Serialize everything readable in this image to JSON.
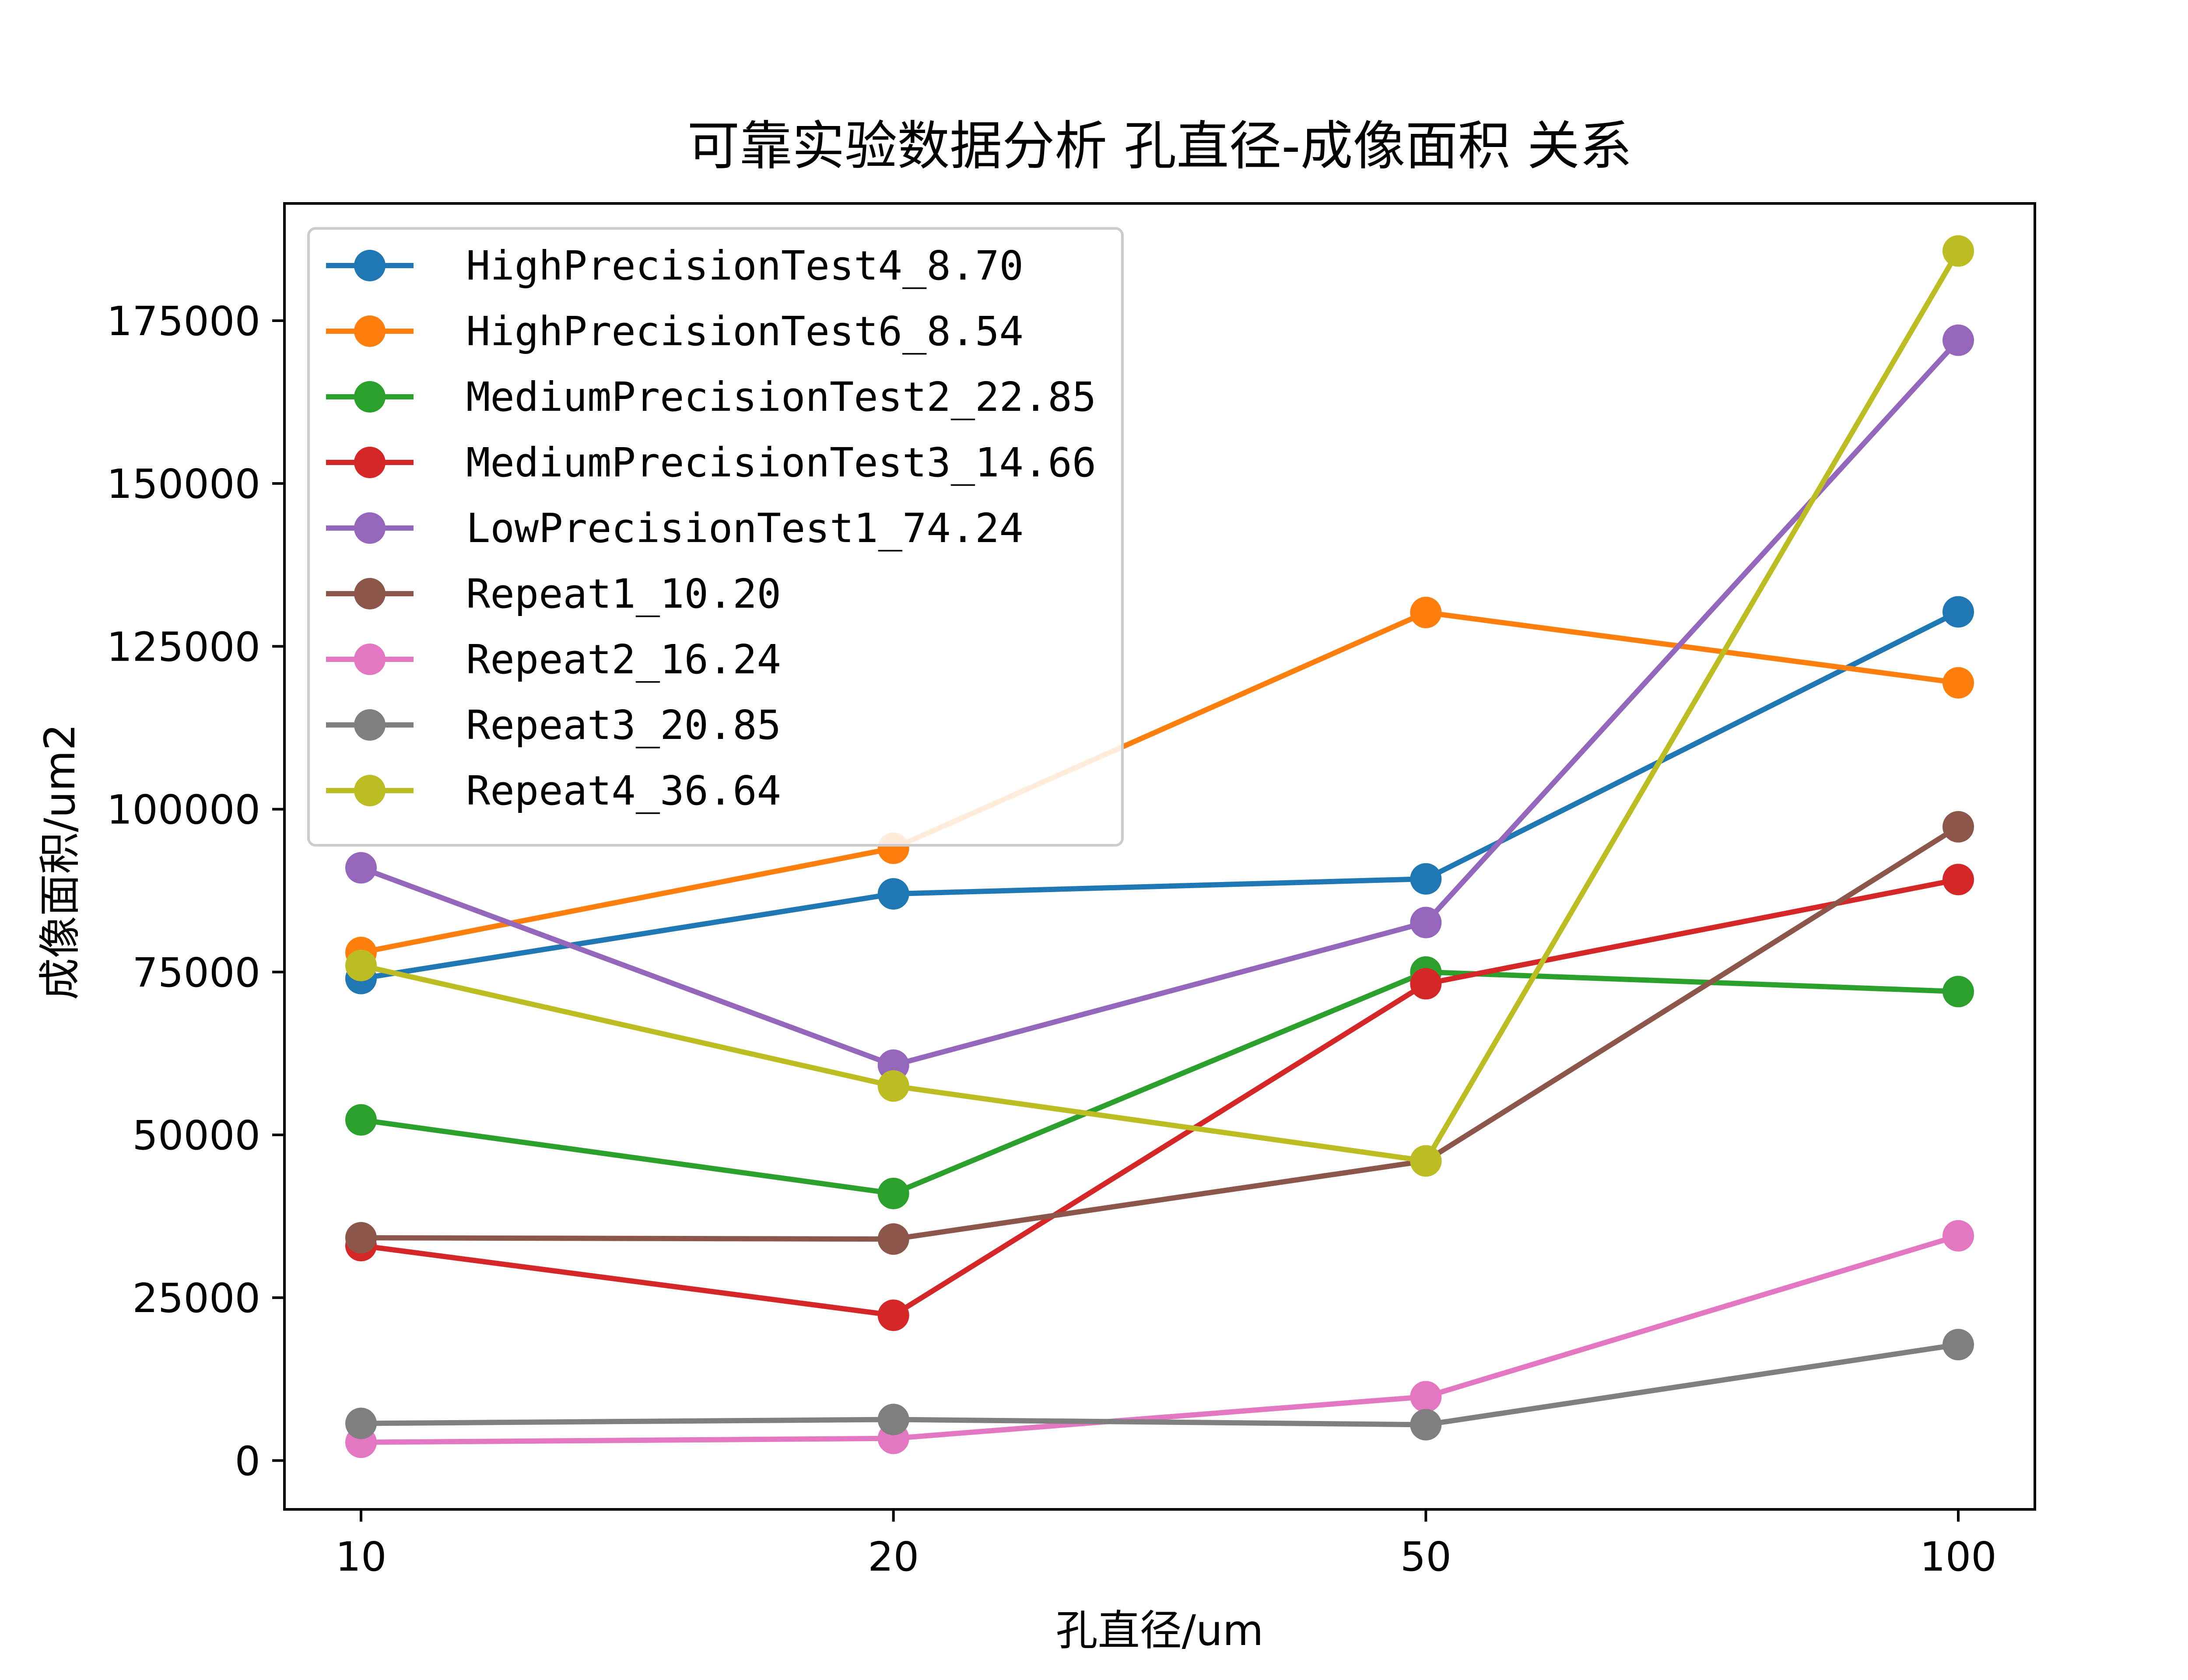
{
  "chart_data": {
    "type": "line",
    "title": "可靠实验数据分析 孔直径-成像面积 关系",
    "xlabel": "孔直径/um",
    "ylabel": "成像面积/um2",
    "categories": [
      "10",
      "20",
      "50",
      "100"
    ],
    "ylim": [
      -7500,
      193000
    ],
    "yticks": [
      0,
      25000,
      50000,
      75000,
      100000,
      125000,
      150000,
      175000
    ],
    "grid": false,
    "legend_position": "top-left",
    "series": [
      {
        "name": "HighPrecisionTest4_8.70",
        "color": "#1f77b4",
        "values": [
          74000,
          87000,
          89300,
          130300
        ]
      },
      {
        "name": "HighPrecisionTest6_8.54",
        "color": "#ff7f0e",
        "values": [
          78000,
          94000,
          130200,
          119400
        ]
      },
      {
        "name": "MediumPrecisionTest2_22.85",
        "color": "#2ca02c",
        "values": [
          52300,
          41000,
          75000,
          72000
        ]
      },
      {
        "name": "MediumPrecisionTest3_14.66",
        "color": "#d62728",
        "values": [
          33000,
          22300,
          73200,
          89200
        ]
      },
      {
        "name": "LowPrecisionTest1_74.24",
        "color": "#9467bd",
        "values": [
          91000,
          60700,
          82600,
          172000
        ]
      },
      {
        "name": "Repeat1_10.20",
        "color": "#8c564b",
        "values": [
          34200,
          34000,
          46000,
          97300
        ]
      },
      {
        "name": "Repeat2_16.24",
        "color": "#e377c2",
        "values": [
          2800,
          3400,
          9800,
          34500
        ]
      },
      {
        "name": "Repeat3_20.85",
        "color": "#7f7f7f",
        "values": [
          5700,
          6300,
          5500,
          17800
        ]
      },
      {
        "name": "Repeat4_36.64",
        "color": "#bcbd22",
        "values": [
          76000,
          57500,
          46000,
          185700
        ]
      }
    ]
  }
}
